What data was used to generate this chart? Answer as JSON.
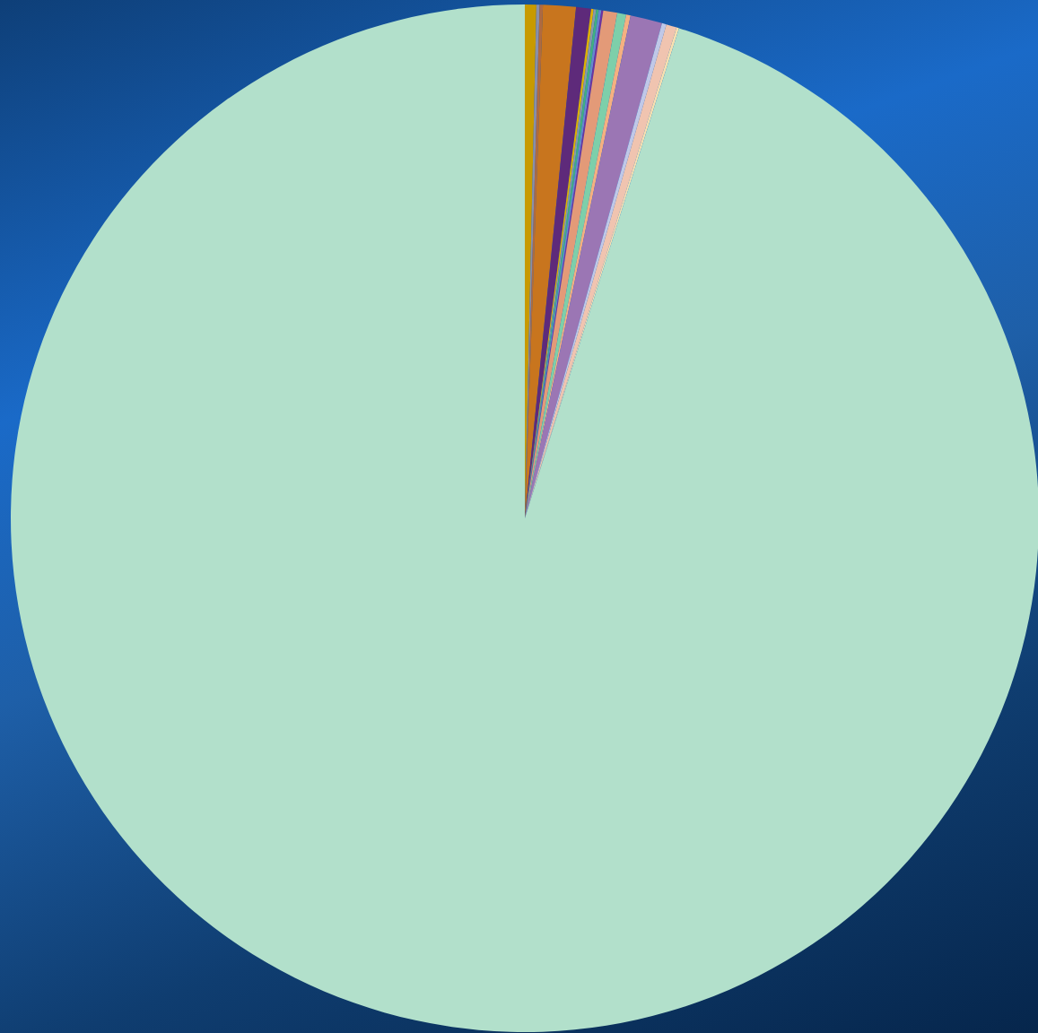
{
  "chart_data": {
    "type": "pie",
    "categories": [
      null,
      null,
      null,
      null,
      null,
      null,
      null,
      null,
      null,
      null,
      null,
      null,
      null,
      null,
      null,
      null,
      null,
      null
    ],
    "values": [
      0.36,
      0.1,
      0.1,
      1.03,
      0.47,
      0.08,
      0.08,
      0.08,
      0.08,
      0.06,
      0.44,
      0.28,
      0.14,
      1.0,
      0.14,
      0.33,
      0.08,
      95.15
    ],
    "colors": [
      "#c89a00",
      "#8a8fa8",
      "#b06a40",
      "#c8751e",
      "#5e2a7a",
      "#e0b000",
      "#8899aa",
      "#40b080",
      "#6688cc",
      "#7030a0",
      "#e39a78",
      "#7dcfaa",
      "#f5b080",
      "#9b76b4",
      "#c0c8e8",
      "#f0c4b0",
      "#f8e0b0",
      "#b2e0cb"
    ]
  }
}
